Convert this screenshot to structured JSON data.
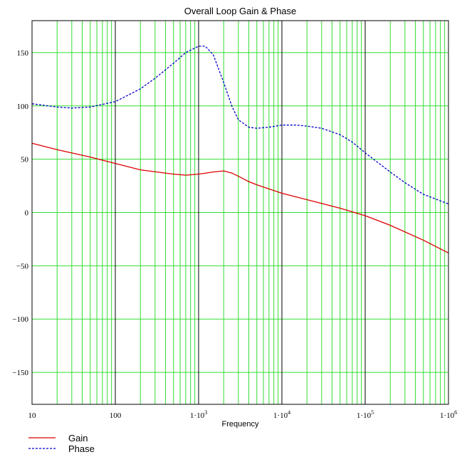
{
  "chart_data": {
    "type": "line",
    "title": "Overall Loop Gain & Phase",
    "xlabel": "Frequency",
    "ylabel": "",
    "xscale": "log",
    "xlim": [
      10,
      1000000
    ],
    "ylim": [
      -180,
      180
    ],
    "grid": true,
    "grid_color": "#33dd33",
    "decade_line_color": "#000000",
    "legend_position": "bottom-left",
    "x_tick_labels": [
      {
        "value": 10,
        "base": "10",
        "exp": ""
      },
      {
        "value": 100,
        "base": "100",
        "exp": ""
      },
      {
        "value": 1000,
        "base": "1·10",
        "exp": "3"
      },
      {
        "value": 10000,
        "base": "1·10",
        "exp": "4"
      },
      {
        "value": 100000,
        "base": "1·10",
        "exp": "5"
      },
      {
        "value": 1000000,
        "base": "1·10",
        "exp": "6"
      }
    ],
    "y_tick_labels": [
      {
        "value": 150,
        "label": "150"
      },
      {
        "value": 100,
        "label": "100"
      },
      {
        "value": 50,
        "label": "50"
      },
      {
        "value": 0,
        "label": "0"
      },
      {
        "value": -50,
        "label": "−50"
      },
      {
        "value": -100,
        "label": "−100"
      },
      {
        "value": -150,
        "label": "−150"
      }
    ],
    "series": [
      {
        "name": "Gain",
        "color": "#dd0000",
        "style": "solid",
        "x": [
          10,
          20,
          50,
          100,
          200,
          500,
          700,
          1000,
          1500,
          2000,
          2500,
          3000,
          4000,
          5000,
          10000,
          20000,
          50000,
          100000,
          200000,
          500000,
          1000000
        ],
        "y": [
          65,
          59,
          52,
          46,
          40,
          36,
          35,
          36,
          38,
          39,
          37,
          34,
          29,
          26,
          18,
          12,
          4,
          -3,
          -12,
          -26,
          -38
        ]
      },
      {
        "name": "Phase",
        "color": "#0000cc",
        "style": "dashed",
        "x": [
          10,
          20,
          30,
          50,
          100,
          200,
          300,
          500,
          700,
          1000,
          1200,
          1500,
          2000,
          2500,
          3000,
          4000,
          5000,
          7000,
          10000,
          15000,
          20000,
          30000,
          50000,
          70000,
          100000,
          200000,
          300000,
          500000,
          1000000
        ],
        "y": [
          102,
          99,
          98,
          99,
          104,
          116,
          126,
          140,
          150,
          156,
          156,
          148,
          122,
          100,
          87,
          80,
          79,
          80,
          82,
          82,
          81,
          79,
          73,
          66,
          56,
          38,
          28,
          17,
          8
        ]
      }
    ]
  }
}
